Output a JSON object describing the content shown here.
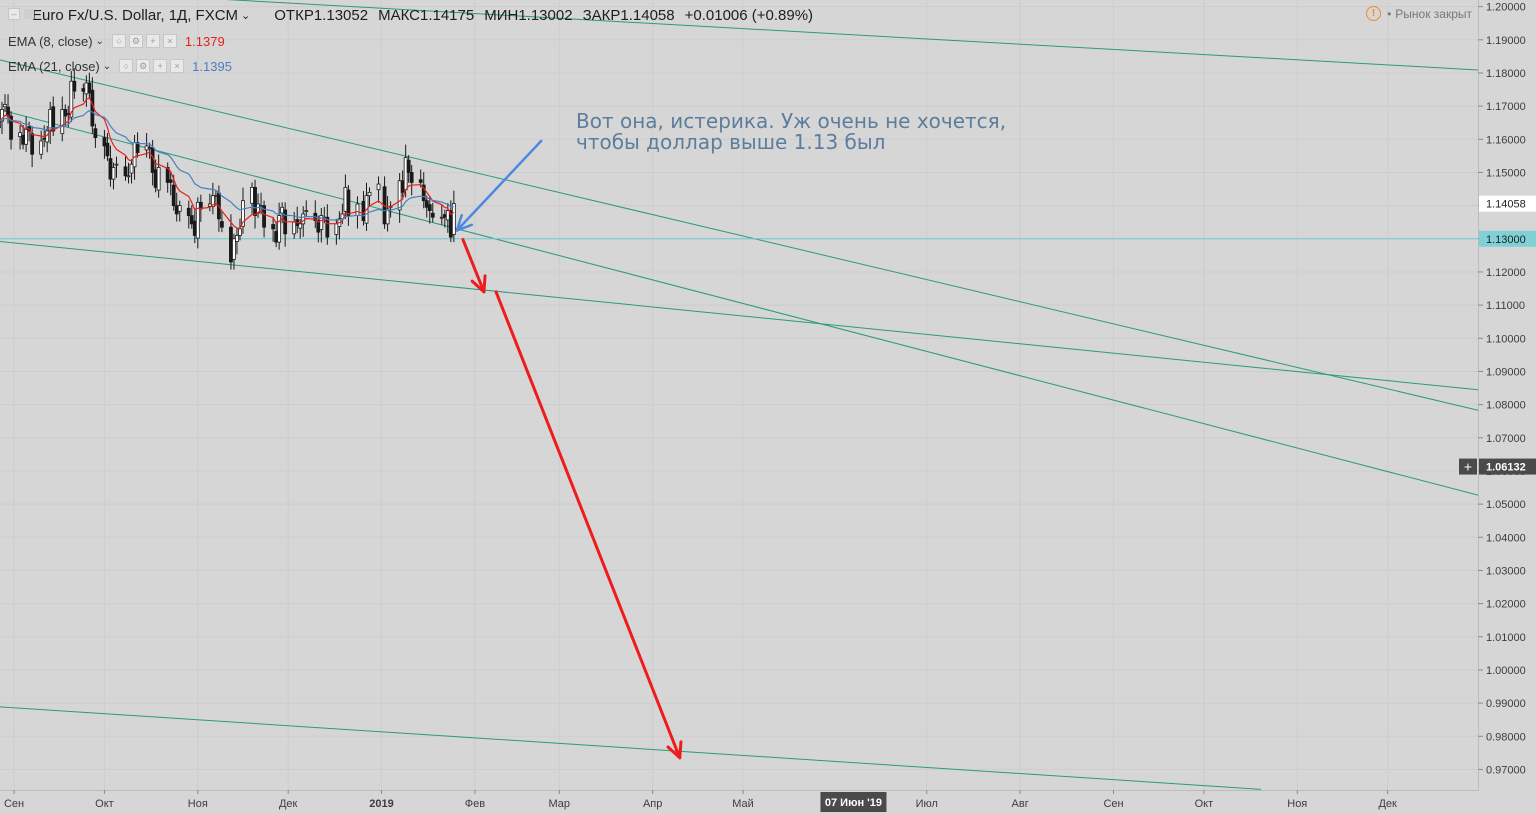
{
  "header": {
    "symbol": "Euro Fx/U.S. Dollar, 1Д, FXCM",
    "open_label": "ОТКР",
    "open": "1.13052",
    "high_label": "МАКС",
    "high": "1.14175",
    "low_label": "МИН",
    "low": "1.13002",
    "close_label": "ЗАКР",
    "close": "1.14058",
    "change": "+0.01006 (+0.89%)",
    "market_status": "Рынок закрыт"
  },
  "indicators": [
    {
      "label": "EMA (8, close)",
      "value": "1.1379",
      "color": "#e8201c"
    },
    {
      "label": "EMA (21, close)",
      "value": "1.1395",
      "color": "#4a7fbf"
    }
  ],
  "annotation": {
    "text": "Вот она, истерика. Уж очень не хочется,\nчтобы доллар выше 1.13 был"
  },
  "chart_data": {
    "type": "candlestick",
    "title": "Euro Fx/U.S. Dollar, 1Д, FXCM",
    "ylim": [
      0.9638,
      1.202
    ],
    "y_ticks": [
      "0.97000",
      "0.98000",
      "0.99000",
      "1.00000",
      "1.01000",
      "1.02000",
      "1.03000",
      "1.04000",
      "1.05000",
      "1.06000",
      "1.07000",
      "1.08000",
      "1.09000",
      "1.10000",
      "1.11000",
      "1.12000",
      "1.13000",
      "1.14000",
      "1.15000",
      "1.16000",
      "1.17000",
      "1.18000",
      "1.19000",
      "1.20000"
    ],
    "x_labels": [
      "Сен",
      "Окт",
      "Ноя",
      "Дек",
      "2019",
      "Фев",
      "Мар",
      "Апр",
      "Май",
      "07 Июн '19",
      "Июл",
      "Авг",
      "Сен",
      "Окт",
      "Ноя",
      "Дек"
    ],
    "x_start": "2018-08-27",
    "x_end": "2019-12-31",
    "price_badges": [
      {
        "label": "1.14058",
        "value": 1.14058,
        "style": "price"
      },
      {
        "label": "1.13000",
        "value": 1.13,
        "style": "level"
      },
      {
        "label": "1.06132",
        "value": 1.06132,
        "style": "cursor"
      }
    ],
    "horizontal_level": 1.13,
    "crosshair_date_label": "07 Июн '19",
    "close_series": [
      [
        "2018-08-27",
        1.1655
      ],
      [
        "2018-08-28",
        1.169
      ],
      [
        "2018-08-29",
        1.1705
      ],
      [
        "2018-08-30",
        1.167
      ],
      [
        "2018-08-31",
        1.16
      ],
      [
        "2018-09-03",
        1.162
      ],
      [
        "2018-09-04",
        1.1585
      ],
      [
        "2018-09-05",
        1.163
      ],
      [
        "2018-09-06",
        1.1625
      ],
      [
        "2018-09-07",
        1.1555
      ],
      [
        "2018-09-10",
        1.1595
      ],
      [
        "2018-09-11",
        1.16
      ],
      [
        "2018-09-12",
        1.1625
      ],
      [
        "2018-09-13",
        1.169
      ],
      [
        "2018-09-14",
        1.1625
      ],
      [
        "2018-09-17",
        1.169
      ],
      [
        "2018-09-18",
        1.167
      ],
      [
        "2018-09-19",
        1.1675
      ],
      [
        "2018-09-20",
        1.1775
      ],
      [
        "2018-09-21",
        1.1745
      ],
      [
        "2018-09-24",
        1.1745
      ],
      [
        "2018-09-25",
        1.177
      ],
      [
        "2018-09-26",
        1.174
      ],
      [
        "2018-09-27",
        1.164
      ],
      [
        "2018-09-28",
        1.1605
      ],
      [
        "2018-10-01",
        1.158
      ],
      [
        "2018-10-02",
        1.155
      ],
      [
        "2018-10-03",
        1.148
      ],
      [
        "2018-10-04",
        1.1515
      ],
      [
        "2018-10-05",
        1.1525
      ],
      [
        "2018-10-08",
        1.149
      ],
      [
        "2018-10-09",
        1.149
      ],
      [
        "2018-10-10",
        1.1525
      ],
      [
        "2018-10-11",
        1.159
      ],
      [
        "2018-10-12",
        1.156
      ],
      [
        "2018-10-15",
        1.158
      ],
      [
        "2018-10-16",
        1.1575
      ],
      [
        "2018-10-17",
        1.15
      ],
      [
        "2018-10-18",
        1.1455
      ],
      [
        "2018-10-19",
        1.1515
      ],
      [
        "2018-10-22",
        1.147
      ],
      [
        "2018-10-23",
        1.147
      ],
      [
        "2018-10-24",
        1.14
      ],
      [
        "2018-10-25",
        1.1375
      ],
      [
        "2018-10-26",
        1.14
      ],
      [
        "2018-10-29",
        1.137
      ],
      [
        "2018-10-30",
        1.1345
      ],
      [
        "2018-10-31",
        1.131
      ],
      [
        "2018-11-01",
        1.141
      ],
      [
        "2018-11-02",
        1.139
      ],
      [
        "2018-11-05",
        1.1405
      ],
      [
        "2018-11-06",
        1.143
      ],
      [
        "2018-11-07",
        1.143
      ],
      [
        "2018-11-08",
        1.136
      ],
      [
        "2018-11-09",
        1.1335
      ],
      [
        "2018-11-12",
        1.123
      ],
      [
        "2018-11-13",
        1.13
      ],
      [
        "2018-11-14",
        1.131
      ],
      [
        "2018-11-15",
        1.133
      ],
      [
        "2018-11-16",
        1.1415
      ],
      [
        "2018-11-19",
        1.1455
      ],
      [
        "2018-11-20",
        1.137
      ],
      [
        "2018-11-21",
        1.1405
      ],
      [
        "2018-11-22",
        1.14
      ],
      [
        "2018-11-23",
        1.1335
      ],
      [
        "2018-11-26",
        1.133
      ],
      [
        "2018-11-27",
        1.129
      ],
      [
        "2018-11-28",
        1.137
      ],
      [
        "2018-11-29",
        1.1395
      ],
      [
        "2018-11-30",
        1.1315
      ],
      [
        "2018-12-03",
        1.135
      ],
      [
        "2018-12-04",
        1.134
      ],
      [
        "2018-12-05",
        1.1345
      ],
      [
        "2018-12-06",
        1.1375
      ],
      [
        "2018-12-07",
        1.1385
      ],
      [
        "2018-12-10",
        1.1355
      ],
      [
        "2018-12-11",
        1.132
      ],
      [
        "2018-12-12",
        1.137
      ],
      [
        "2018-12-13",
        1.1365
      ],
      [
        "2018-12-14",
        1.1305
      ],
      [
        "2018-12-17",
        1.1345
      ],
      [
        "2018-12-18",
        1.136
      ],
      [
        "2018-12-19",
        1.1375
      ],
      [
        "2018-12-20",
        1.1455
      ],
      [
        "2018-12-21",
        1.137
      ],
      [
        "2018-12-24",
        1.1405
      ],
      [
        "2018-12-26",
        1.1355
      ],
      [
        "2018-12-27",
        1.143
      ],
      [
        "2018-12-28",
        1.144
      ],
      [
        "2018-12-31",
        1.1465
      ],
      [
        "2019-01-02",
        1.1345
      ],
      [
        "2019-01-03",
        1.139
      ],
      [
        "2019-01-04",
        1.1395
      ],
      [
        "2019-01-07",
        1.1475
      ],
      [
        "2019-01-08",
        1.144
      ],
      [
        "2019-01-09",
        1.1545
      ],
      [
        "2019-01-10",
        1.15
      ],
      [
        "2019-01-11",
        1.147
      ],
      [
        "2019-01-14",
        1.147
      ],
      [
        "2019-01-15",
        1.1415
      ],
      [
        "2019-01-16",
        1.1395
      ],
      [
        "2019-01-17",
        1.1385
      ],
      [
        "2019-01-18",
        1.1365
      ],
      [
        "2019-01-21",
        1.1365
      ],
      [
        "2019-01-22",
        1.1365
      ],
      [
        "2019-01-23",
        1.1385
      ],
      [
        "2019-01-24",
        1.1305
      ],
      [
        "2019-01-25",
        1.1406
      ]
    ],
    "series": [
      {
        "name": "EMA (8, close)",
        "last": 1.1379
      },
      {
        "name": "EMA (21, close)",
        "last": 1.1395
      }
    ],
    "trend_lines": [
      {
        "from": [
          "2018-08-27",
          1.206
        ],
        "to": [
          "2019-12-31",
          1.1809
        ]
      },
      {
        "from": [
          "2018-08-27",
          1.184
        ],
        "to": [
          "2019-12-31",
          1.0783
        ]
      },
      {
        "from": [
          "2018-08-27",
          1.169
        ],
        "to": [
          "2019-12-31",
          1.0527
        ]
      },
      {
        "from": [
          "2018-08-27",
          1.1292
        ],
        "to": [
          "2019-12-31",
          1.0845
        ]
      },
      {
        "from": [
          "2018-08-27",
          0.9889
        ],
        "to": [
          "2019-10-20",
          0.964
        ]
      }
    ],
    "arrows": [
      {
        "color": "#4e87e0",
        "from": [
          "2019-02-23",
          1.1595
        ],
        "to": [
          "2019-01-26",
          1.1325
        ]
      },
      {
        "color": "#ee1c1c",
        "from": [
          "2019-01-28",
          1.1298
        ],
        "to": [
          "2019-02-04",
          1.114
        ]
      },
      {
        "color": "#ee1c1c",
        "from": [
          "2019-02-08",
          1.114
        ],
        "to": [
          "2019-04-10",
          0.9735
        ]
      }
    ]
  }
}
